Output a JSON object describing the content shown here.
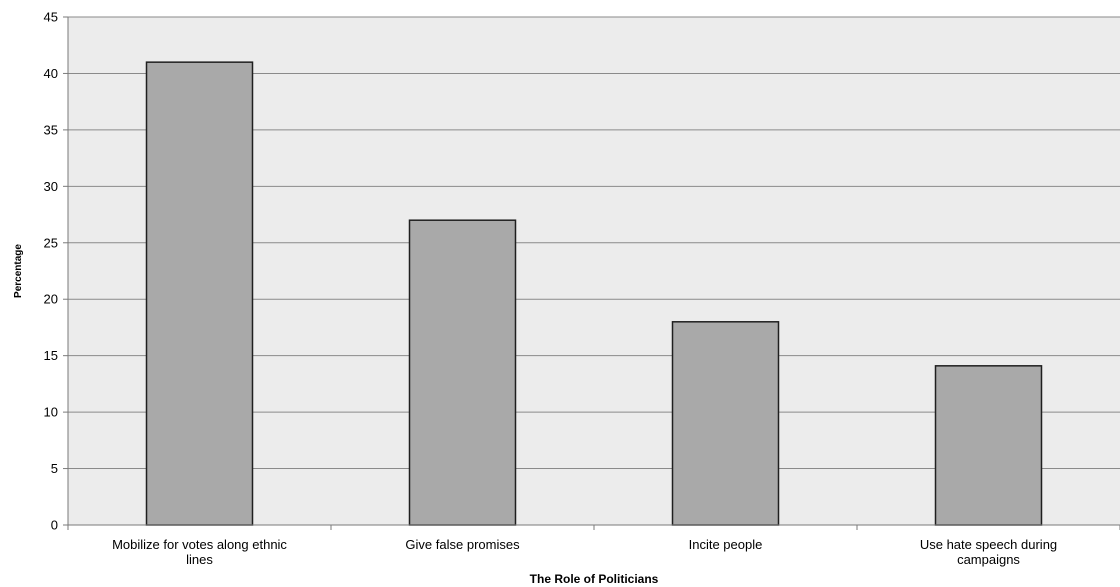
{
  "chart_data": {
    "type": "bar",
    "title": "",
    "xlabel": "The Role of Politicians",
    "ylabel": "Percentage",
    "categories": [
      [
        "Mobilize for votes along ethnic",
        "lines"
      ],
      [
        "Give false promises"
      ],
      [
        "Incite people"
      ],
      [
        "Use hate speech during",
        "campaigns"
      ]
    ],
    "values": [
      41,
      27,
      18,
      14.1
    ],
    "ylim": [
      0,
      45
    ],
    "yticks": [
      0,
      5,
      10,
      15,
      20,
      25,
      30,
      35,
      40,
      45
    ],
    "grid": true,
    "legend": "none",
    "colors": {
      "plot_background": "#ececec",
      "bar_fill": "#a9a9a9",
      "bar_stroke": "#1f1f1f",
      "gridline": "#8a8a8a",
      "axis": "#7a7a7a",
      "text": "#000000"
    }
  }
}
